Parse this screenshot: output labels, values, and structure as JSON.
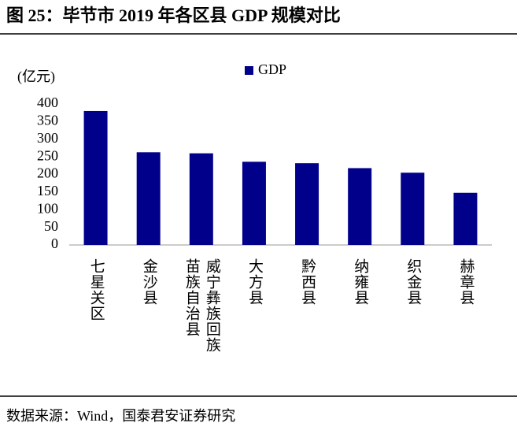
{
  "chart_data": {
    "type": "bar",
    "title": "图 25：毕节市 2019 年各区县 GDP 规模对比",
    "y_label": "(亿元)",
    "categories": [
      "七星关区",
      "金沙县",
      "威宁彝族回族苗族自治县",
      "大方县",
      "黔西县",
      "纳雍县",
      "织金县",
      "赫章县"
    ],
    "series": [
      {
        "name": "GDP",
        "color": "#00008b",
        "values": [
          380,
          263,
          260,
          236,
          232,
          218,
          205,
          148
        ]
      }
    ],
    "ylim": [
      0,
      400
    ],
    "yticks": [
      0,
      50,
      100,
      150,
      200,
      250,
      300,
      350,
      400
    ],
    "grid": false,
    "legend": "top",
    "source": "数据来源：Wind，国泰君安证券研究"
  }
}
